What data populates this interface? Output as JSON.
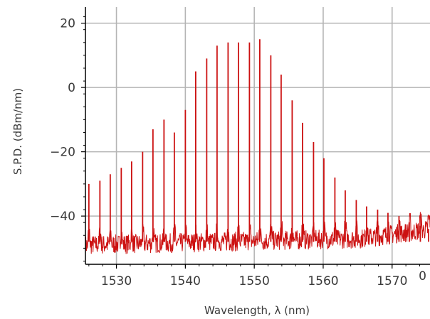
{
  "chart_data": {
    "type": "line",
    "title": "",
    "xlabel": "Wavelength, λ (nm)",
    "ylabel": "S.P.D. (dBm/nm)",
    "xlim": [
      1525.5,
      1575.5
    ],
    "ylim": [
      -55,
      25
    ],
    "xticks": [
      1530,
      1540,
      1550,
      1560,
      1570
    ],
    "yticks": [
      20,
      0,
      -20,
      -40
    ],
    "ytick_labels": [
      "20",
      "0",
      "−20",
      "−40"
    ],
    "grid": true,
    "line_color": "#cc1111",
    "series": [
      {
        "peaks_x": [
          1526.0,
          1527.6,
          1529.1,
          1530.7,
          1532.2,
          1533.8,
          1535.3,
          1536.9,
          1538.4,
          1540.0,
          1541.5,
          1543.1,
          1544.6,
          1546.2,
          1547.7,
          1549.3,
          1550.8,
          1552.4,
          1553.9,
          1555.5,
          1557.0,
          1558.6,
          1560.1,
          1561.7,
          1563.2,
          1564.8,
          1566.3,
          1567.9,
          1569.4,
          1571.0,
          1572.5,
          1574.1,
          1575.3
        ],
        "peaks_y": [
          -30,
          -29,
          -27,
          -25,
          -23,
          -20,
          -13,
          -10,
          -14,
          -7,
          5,
          9,
          13,
          14,
          14,
          14,
          15,
          10,
          4,
          -4,
          -11,
          -17,
          -22,
          -28,
          -32,
          -35,
          -37,
          -38,
          -39,
          -40,
          -42,
          -43,
          -44
        ],
        "noise_floor": [
          -52,
          -44
        ]
      }
    ]
  },
  "stray_label": "0"
}
